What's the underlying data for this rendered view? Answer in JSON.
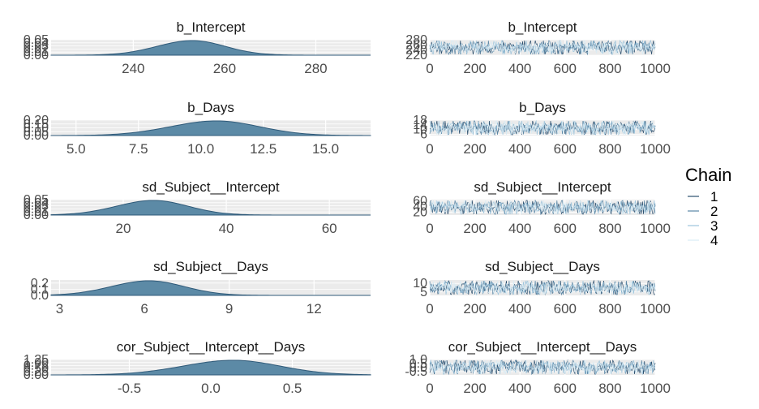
{
  "chart_data": [
    {
      "type": "area",
      "panel": "density",
      "title": "b_Intercept",
      "xticks": [
        240,
        260,
        280
      ],
      "xlim": [
        222,
        292
      ],
      "yticks": [
        "0.00",
        "0.01",
        "0.02",
        "0.03",
        "0.04",
        "0.05"
      ],
      "ylim": [
        0,
        0.05
      ],
      "peak": 252,
      "spread": 7.5,
      "grid": true
    },
    {
      "type": "line",
      "panel": "trace",
      "title": "b_Intercept",
      "xticks": [
        0,
        200,
        400,
        600,
        800,
        1000
      ],
      "xlim": [
        0,
        1000
      ],
      "yticks": [
        "220",
        "240",
        "260",
        "280"
      ],
      "ylim": [
        220,
        280
      ],
      "center": 252,
      "spread": 7.5,
      "grid": true
    },
    {
      "type": "area",
      "panel": "density",
      "title": "b_Days",
      "xticks": [
        "5.0",
        "7.5",
        "10.0",
        "12.5",
        "15.0"
      ],
      "xlim": [
        4.0,
        16.8
      ],
      "yticks": [
        "0.00",
        "0.05",
        "0.10",
        "0.15",
        "0.20"
      ],
      "ylim": [
        0,
        0.2
      ],
      "peak": 10.4,
      "spread": 1.8,
      "grid": true
    },
    {
      "type": "line",
      "panel": "trace",
      "title": "b_Days",
      "xticks": [
        0,
        200,
        400,
        600,
        800,
        1000
      ],
      "xlim": [
        0,
        1000
      ],
      "yticks": [
        "6",
        "10",
        "14",
        "18"
      ],
      "ylim": [
        5,
        18
      ],
      "center": 10.4,
      "spread": 1.8,
      "grid": true
    },
    {
      "type": "area",
      "panel": "density",
      "title": "sd_Subject__Intercept",
      "xticks": [
        20,
        40,
        60
      ],
      "xlim": [
        6,
        68
      ],
      "yticks": [
        "0.00",
        "0.01",
        "0.02",
        "0.03",
        "0.04",
        "0.05"
      ],
      "ylim": [
        0,
        0.05
      ],
      "peak": 25,
      "spread": 7,
      "grid": true
    },
    {
      "type": "line",
      "panel": "trace",
      "title": "sd_Subject__Intercept",
      "xticks": [
        0,
        200,
        400,
        600,
        800,
        1000
      ],
      "xlim": [
        0,
        1000
      ],
      "yticks": [
        "20",
        "40",
        "60"
      ],
      "ylim": [
        10,
        65
      ],
      "center": 26,
      "spread": 6,
      "grid": true
    },
    {
      "type": "area",
      "panel": "density",
      "title": "sd_Subject__Days",
      "xticks": [
        3,
        6,
        9,
        12
      ],
      "xlim": [
        2.7,
        14.0
      ],
      "yticks": [
        "0.0",
        "0.1",
        "0.2"
      ],
      "ylim": [
        0,
        0.25
      ],
      "peak": 6.0,
      "spread": 1.3,
      "grid": true
    },
    {
      "type": "line",
      "panel": "trace",
      "title": "sd_Subject__Days",
      "xticks": [
        0,
        200,
        400,
        600,
        800,
        1000
      ],
      "xlim": [
        0,
        1000
      ],
      "yticks": [
        "5",
        "10"
      ],
      "ylim": [
        3,
        12
      ],
      "center": 6.3,
      "spread": 1.3,
      "grid": true
    },
    {
      "type": "area",
      "panel": "density",
      "title": "cor_Subject__Intercept__Days",
      "xticks": [
        "-0.5",
        "0.0",
        "0.5"
      ],
      "xlim": [
        -0.98,
        0.98
      ],
      "yticks": [
        "0.00",
        "0.25",
        "0.50",
        "0.75",
        "1.00",
        "1.25"
      ],
      "ylim": [
        0,
        1.25
      ],
      "peak": 0.1,
      "spread": 0.3,
      "grid": true
    },
    {
      "type": "line",
      "panel": "trace",
      "title": "cor_Subject__Intercept__Days",
      "xticks": [
        0,
        200,
        400,
        600,
        800,
        1000
      ],
      "xlim": [
        0,
        1000
      ],
      "yticks": [
        "-0.5",
        "0.0",
        "0.5",
        "1.0"
      ],
      "ylim": [
        -0.9,
        1.0
      ],
      "center": 0.05,
      "spread": 0.3,
      "grid": true
    }
  ],
  "legend": {
    "title": "Chain",
    "placement": "right",
    "entries": [
      {
        "label": "1",
        "color": "#2c4f6e"
      },
      {
        "label": "2",
        "color": "#5b87a6"
      },
      {
        "label": "3",
        "color": "#9cc4dc"
      },
      {
        "label": "4",
        "color": "#d9ecf5"
      }
    ]
  },
  "colors": {
    "density_fill": "#5c8aa6",
    "density_line": "#2f5a79",
    "panel_bg": "#ebebeb",
    "grid_line": "#ffffff"
  }
}
